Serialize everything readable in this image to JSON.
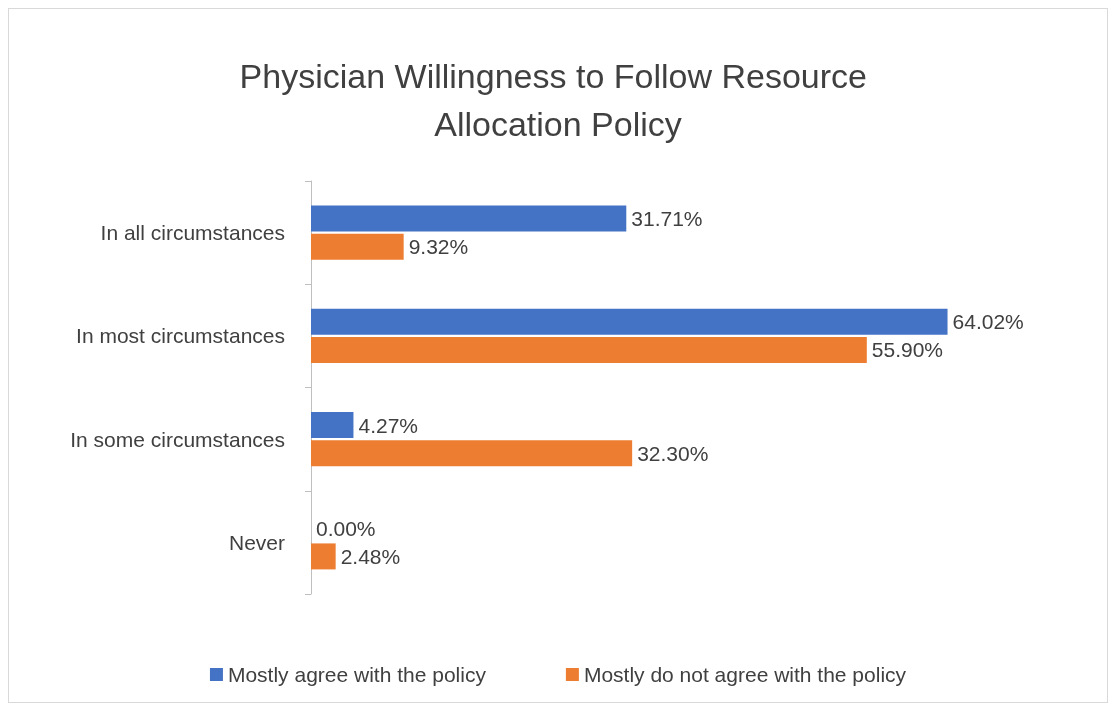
{
  "chart_data": {
    "type": "bar",
    "orientation": "horizontal",
    "title": "Physician Willingness to Follow Resource Allocation Policy",
    "categories": [
      "In all circumstances",
      "In most circumstances",
      "In some circumstances",
      "Never"
    ],
    "series": [
      {
        "name": "Mostly agree with the policy",
        "color": "#4472c4",
        "values": [
          31.71,
          64.02,
          4.27,
          0.0
        ],
        "value_labels": [
          "31.71%",
          "64.02%",
          "4.27%",
          "0.00%"
        ]
      },
      {
        "name": "Mostly do not agree with the policy",
        "color": "#ed7d31",
        "values": [
          9.32,
          55.9,
          32.3,
          2.48
        ],
        "value_labels": [
          "9.32%",
          "55.90%",
          "32.30%",
          "2.48%"
        ]
      }
    ],
    "legend": "bottom"
  }
}
